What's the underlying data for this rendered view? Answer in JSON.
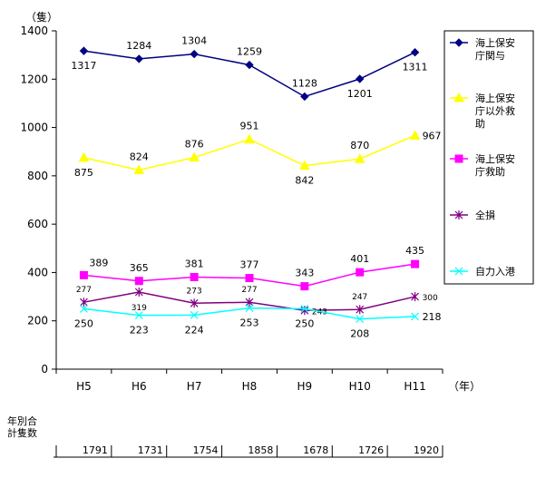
{
  "chart_data": {
    "type": "line",
    "y_unit_label": "（隻）",
    "x_unit_label": "（年）",
    "categories": [
      "H5",
      "H6",
      "H7",
      "H8",
      "H9",
      "H10",
      "H11"
    ],
    "ylim": [
      0,
      1400
    ],
    "yticks": [
      "0",
      "200",
      "400",
      "600",
      "800",
      "1000",
      "1200",
      "1400"
    ],
    "grid": false,
    "legend_position": "right",
    "series": [
      {
        "name": "海上保安庁関与",
        "legend_lines": [
          "海上保安",
          "庁関与"
        ],
        "color": "#000080",
        "marker": "diamond",
        "values": [
          1317,
          1284,
          1304,
          1259,
          1128,
          1201,
          1311
        ]
      },
      {
        "name": "海上保安庁以外救助",
        "legend_lines": [
          "海上保安",
          "庁以外救",
          "助"
        ],
        "color": "#ffff00",
        "marker": "triangle",
        "values": [
          875,
          824,
          876,
          951,
          842,
          870,
          967
        ]
      },
      {
        "name": "海上保安庁救助",
        "legend_lines": [
          "海上保安",
          "庁救助"
        ],
        "color": "#ff00ff",
        "marker": "square",
        "values": [
          389,
          365,
          381,
          377,
          343,
          401,
          435
        ]
      },
      {
        "name": "全損",
        "legend_lines": [
          "全損"
        ],
        "color": "#800080",
        "marker": "star",
        "values": [
          277,
          319,
          273,
          277,
          243,
          247,
          300
        ]
      },
      {
        "name": "自力入港",
        "legend_lines": [
          "自力入港"
        ],
        "color": "#00ffff",
        "marker": "x",
        "values": [
          250,
          223,
          224,
          253,
          250,
          208,
          218
        ]
      }
    ],
    "totals": {
      "label_lines": [
        "年別合",
        "計隻数"
      ],
      "values": [
        "1791",
        "1731",
        "1754",
        "1858",
        "1678",
        "1726",
        "1920"
      ]
    }
  }
}
